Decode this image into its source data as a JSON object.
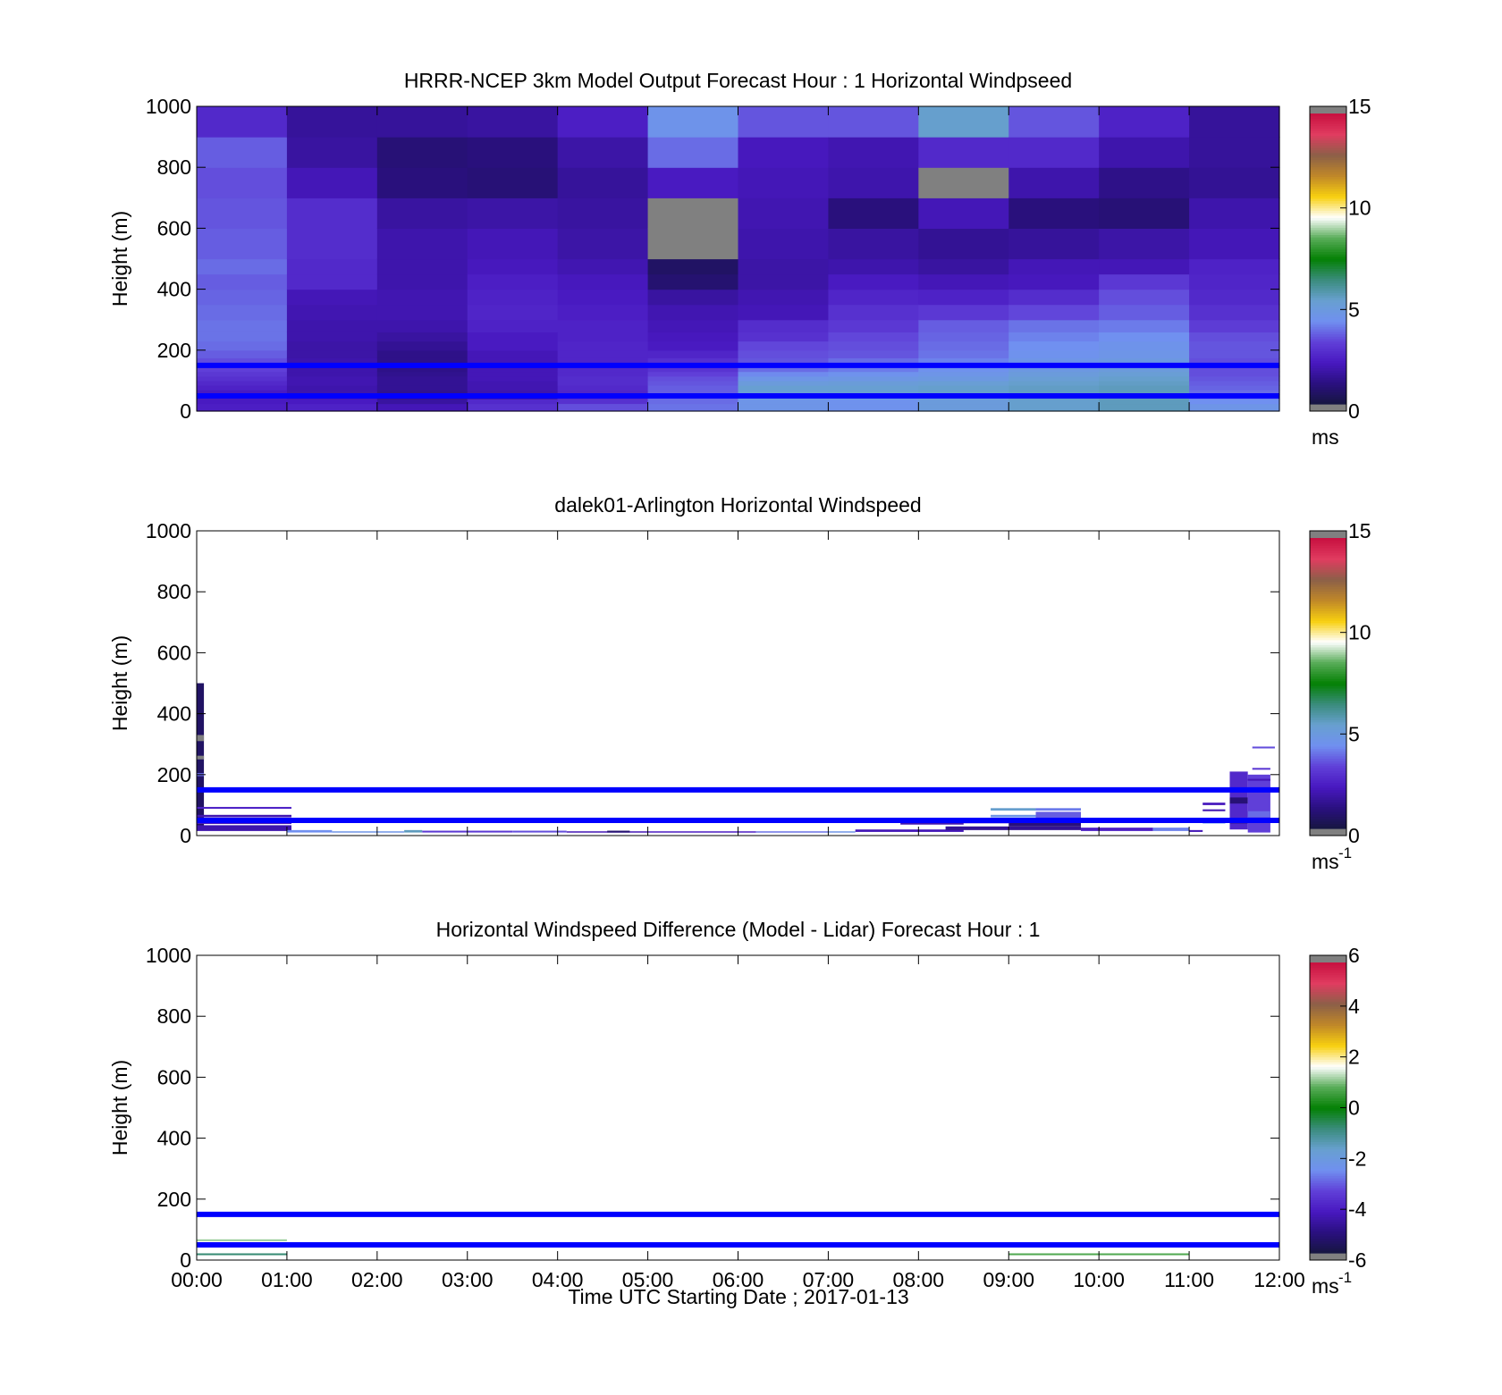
{
  "figure": {
    "xlabel": "Time UTC  Starting Date ; 2017-01-13",
    "x_ticks": [
      "00:00",
      "01:00",
      "02:00",
      "03:00",
      "04:00",
      "05:00",
      "06:00",
      "07:00",
      "08:00",
      "09:00",
      "10:00",
      "11:00",
      "12:00"
    ]
  },
  "palette": {
    "stops": [
      "#161640",
      "#2a1080",
      "#4818c0",
      "#6040d8",
      "#7090f0",
      "#68a0d0",
      "#3a8c7c",
      "#048004",
      "#58ac58",
      "#ffffff",
      "#f8d010",
      "#c08828",
      "#8c6048",
      "#e03c60",
      "#c81040"
    ],
    "overflow_color": "#808080",
    "guide_line_color": "#0000ff"
  },
  "chart_data": [
    {
      "type": "heatmap",
      "title": "HRRR-NCEP 3km Model Output   Forecast Hour : 1 Horizontal Windpseed",
      "ylabel": "Height (m)",
      "xlim": [
        0,
        12
      ],
      "ylim": [
        0,
        1000
      ],
      "y_ticks": [
        0,
        200,
        400,
        600,
        800,
        1000
      ],
      "colorbar": {
        "label": "ms",
        "label_sup": "",
        "range": [
          0,
          15
        ],
        "ticks": [
          0,
          5,
          10,
          15
        ]
      },
      "guide_lines_m": [
        150,
        50
      ],
      "columns_x": [
        0,
        1,
        2,
        3,
        4,
        5,
        6,
        7,
        8,
        9,
        10,
        11
      ],
      "level_edges_m": [
        0,
        25,
        40,
        55,
        70,
        85,
        100,
        115,
        130,
        150,
        175,
        200,
        230,
        260,
        300,
        350,
        400,
        450,
        500,
        600,
        700,
        800,
        900,
        1000
      ],
      "values": [
        [
          2.3,
          2.2,
          2.2,
          2.2,
          2.4,
          2.6,
          2.8,
          3.0,
          3.2,
          3.4,
          3.6,
          3.8,
          3.9,
          3.9,
          3.8,
          3.7,
          3.6,
          3.8,
          3.6,
          3.5,
          3.4,
          3.6,
          2.6
        ],
        [
          2.4,
          2.2,
          2.0,
          1.8,
          1.8,
          1.9,
          1.9,
          1.8,
          1.8,
          1.8,
          1.7,
          1.7,
          1.8,
          1.8,
          1.9,
          2.0,
          2.6,
          2.6,
          2.7,
          2.7,
          2.0,
          1.6,
          1.5
        ],
        [
          2.0,
          1.6,
          1.4,
          1.3,
          1.4,
          1.4,
          1.4,
          1.3,
          1.2,
          1.2,
          1.2,
          1.4,
          1.6,
          1.8,
          1.9,
          1.9,
          1.8,
          1.8,
          1.8,
          1.6,
          1.0,
          0.9,
          1.5
        ],
        [
          2.8,
          2.6,
          1.8,
          1.8,
          1.9,
          1.9,
          2.0,
          2.0,
          2.0,
          2.0,
          2.0,
          2.2,
          2.2,
          2.4,
          2.5,
          2.4,
          2.3,
          2.1,
          2.0,
          1.7,
          0.9,
          1.0,
          1.6
        ],
        [
          3.4,
          2.8,
          2.6,
          2.5,
          2.6,
          2.7,
          2.7,
          2.6,
          2.6,
          2.5,
          2.5,
          2.5,
          2.4,
          2.4,
          2.3,
          2.2,
          2.1,
          1.9,
          1.7,
          1.6,
          1.5,
          1.7,
          2.3
        ],
        [
          3.9,
          3.8,
          3.7,
          3.6,
          3.6,
          3.5,
          3.4,
          3.2,
          2.9,
          2.8,
          2.5,
          2.2,
          2.1,
          2.0,
          1.9,
          1.6,
          0.8,
          0.6,
          16,
          16,
          2.2,
          3.8,
          4.5
        ],
        [
          4.6,
          4.6,
          5.0,
          5.2,
          5.3,
          5.0,
          4.6,
          4.2,
          3.8,
          3.5,
          3.4,
          3.3,
          2.8,
          2.7,
          2.0,
          1.9,
          1.7,
          1.7,
          1.8,
          1.9,
          2.0,
          2.1,
          3.5
        ],
        [
          4.4,
          4.4,
          5.0,
          5.3,
          5.3,
          5.1,
          4.7,
          4.4,
          4.0,
          3.8,
          3.5,
          3.4,
          3.3,
          3.0,
          2.8,
          2.5,
          2.2,
          1.8,
          1.6,
          1.0,
          1.8,
          1.9,
          3.5
        ],
        [
          5.0,
          5.0,
          5.2,
          5.4,
          5.4,
          5.2,
          4.8,
          4.6,
          4.4,
          4.1,
          3.9,
          3.8,
          3.7,
          3.6,
          3.0,
          2.4,
          2.0,
          1.6,
          1.4,
          2.0,
          16,
          2.6,
          5.4
        ],
        [
          5.4,
          5.4,
          5.5,
          5.5,
          5.5,
          5.4,
          5.2,
          5.0,
          4.8,
          4.6,
          4.4,
          4.3,
          4.1,
          3.9,
          3.3,
          2.7,
          2.1,
          2.0,
          1.5,
          1.0,
          1.8,
          2.6,
          3.5
        ],
        [
          5.6,
          5.6,
          5.6,
          5.6,
          5.6,
          5.5,
          5.4,
          5.2,
          5.0,
          4.8,
          4.6,
          4.5,
          4.3,
          4.0,
          3.6,
          3.4,
          3.0,
          2.0,
          1.7,
          0.9,
          1.2,
          1.8,
          2.4
        ],
        [
          4.6,
          4.3,
          4.0,
          3.8,
          3.7,
          3.6,
          3.5,
          3.4,
          3.4,
          3.4,
          3.5,
          3.5,
          3.4,
          3.1,
          2.8,
          2.6,
          2.5,
          2.4,
          2.0,
          1.8,
          1.4,
          1.5,
          1.5
        ]
      ]
    },
    {
      "type": "heatmap",
      "title": "dalek01-Arlington  Horizontal Windspeed",
      "ylabel": "Height (m)",
      "xlim": [
        0,
        12
      ],
      "ylim": [
        0,
        1000
      ],
      "y_ticks": [
        0,
        200,
        400,
        600,
        800,
        1000
      ],
      "colorbar": {
        "label": "ms",
        "label_sup": "-1",
        "range": [
          0,
          15
        ],
        "ticks": [
          0,
          5,
          10,
          15
        ]
      },
      "guide_lines_m": [
        150,
        50
      ],
      "segments": [
        {
          "x0": 0.0,
          "x1": 0.08,
          "y0": 20,
          "y1": 500,
          "v": 0.6
        },
        {
          "x0": 0.0,
          "x1": 0.08,
          "y0": 310,
          "y1": 330,
          "v": 16
        },
        {
          "x0": 0.0,
          "x1": 0.08,
          "y0": 250,
          "y1": 262,
          "v": 16
        },
        {
          "x0": 0.0,
          "x1": 0.08,
          "y0": 195,
          "y1": 205,
          "v": 3.8
        },
        {
          "x0": 0.0,
          "x1": 1.05,
          "y0": 88,
          "y1": 94,
          "v": 2.4
        },
        {
          "x0": 0.0,
          "x1": 1.05,
          "y0": 60,
          "y1": 68,
          "v": 1.9
        },
        {
          "x0": 0.0,
          "x1": 1.05,
          "y0": 38,
          "y1": 46,
          "v": 2.1
        },
        {
          "x0": 0.0,
          "x1": 1.05,
          "y0": 15,
          "y1": 34,
          "v": 1.8
        },
        {
          "x0": 1.0,
          "x1": 1.5,
          "y0": 10,
          "y1": 18,
          "v": 4.3
        },
        {
          "x0": 1.5,
          "x1": 2.3,
          "y0": 10,
          "y1": 14,
          "v": 4.6
        },
        {
          "x0": 2.3,
          "x1": 2.5,
          "y0": 10,
          "y1": 18,
          "v": 5.6
        },
        {
          "x0": 2.5,
          "x1": 3.5,
          "y0": 10,
          "y1": 16,
          "v": 3.0
        },
        {
          "x0": 3.5,
          "x1": 4.1,
          "y0": 10,
          "y1": 16,
          "v": 3.4
        },
        {
          "x0": 4.1,
          "x1": 5.0,
          "y0": 10,
          "y1": 14,
          "v": 2.0
        },
        {
          "x0": 4.55,
          "x1": 4.8,
          "y0": 10,
          "y1": 16,
          "v": 0.8
        },
        {
          "x0": 5.0,
          "x1": 6.2,
          "y0": 10,
          "y1": 14,
          "v": 2.3
        },
        {
          "x0": 6.2,
          "x1": 7.0,
          "y0": 10,
          "y1": 14,
          "v": 3.9
        },
        {
          "x0": 7.0,
          "x1": 7.3,
          "y0": 10,
          "y1": 14,
          "v": 4.6
        },
        {
          "x0": 7.3,
          "x1": 8.5,
          "y0": 12,
          "y1": 20,
          "v": 2.0
        },
        {
          "x0": 7.8,
          "x1": 8.5,
          "y0": 36,
          "y1": 42,
          "v": 1.9
        },
        {
          "x0": 8.5,
          "x1": 9.0,
          "y0": 40,
          "y1": 50,
          "v": 3.0
        },
        {
          "x0": 8.8,
          "x1": 9.3,
          "y0": 82,
          "y1": 90,
          "v": 5.4
        },
        {
          "x0": 8.8,
          "x1": 9.3,
          "y0": 60,
          "y1": 68,
          "v": 4.6
        },
        {
          "x0": 9.3,
          "x1": 9.8,
          "y0": 82,
          "y1": 90,
          "v": 4.0
        },
        {
          "x0": 9.3,
          "x1": 9.8,
          "y0": 58,
          "y1": 78,
          "v": 3.6
        },
        {
          "x0": 8.3,
          "x1": 9.8,
          "y0": 18,
          "y1": 30,
          "v": 1.4
        },
        {
          "x0": 9.0,
          "x1": 9.8,
          "y0": 30,
          "y1": 42,
          "v": 1.0
        },
        {
          "x0": 9.8,
          "x1": 10.6,
          "y0": 15,
          "y1": 26,
          "v": 2.3
        },
        {
          "x0": 10.6,
          "x1": 11.0,
          "y0": 15,
          "y1": 26,
          "v": 4.1
        },
        {
          "x0": 11.0,
          "x1": 11.15,
          "y0": 12,
          "y1": 18,
          "v": 2.0
        },
        {
          "x0": 11.15,
          "x1": 11.4,
          "y0": 100,
          "y1": 108,
          "v": 2.1
        },
        {
          "x0": 11.15,
          "x1": 11.4,
          "y0": 80,
          "y1": 86,
          "v": 1.9
        },
        {
          "x0": 11.15,
          "x1": 11.4,
          "y0": 40,
          "y1": 44,
          "v": 4.6
        },
        {
          "x0": 11.45,
          "x1": 11.65,
          "y0": 20,
          "y1": 210,
          "v": 2.6
        },
        {
          "x0": 11.45,
          "x1": 11.65,
          "y0": 105,
          "y1": 125,
          "v": 0.9
        },
        {
          "x0": 11.45,
          "x1": 11.65,
          "y0": 40,
          "y1": 55,
          "v": 0.9
        },
        {
          "x0": 11.65,
          "x1": 11.9,
          "y0": 10,
          "y1": 200,
          "v": 3.2
        },
        {
          "x0": 11.65,
          "x1": 11.9,
          "y0": 180,
          "y1": 186,
          "v": 2.0
        },
        {
          "x0": 11.65,
          "x1": 11.9,
          "y0": 60,
          "y1": 80,
          "v": 3.8
        },
        {
          "x0": 11.7,
          "x1": 11.9,
          "y0": 216,
          "y1": 222,
          "v": 3.0
        },
        {
          "x0": 11.7,
          "x1": 11.95,
          "y0": 286,
          "y1": 292,
          "v": 3.4
        }
      ]
    },
    {
      "type": "heatmap",
      "title": "Horizontal Windspeed Difference (Model - Lidar) Forecast Hour : 1",
      "ylabel": "Height (m)",
      "xlim": [
        0,
        12
      ],
      "ylim": [
        0,
        1000
      ],
      "y_ticks": [
        0,
        200,
        400,
        600,
        800,
        1000
      ],
      "colorbar": {
        "label": "ms",
        "label_sup": "-1",
        "range": [
          -6,
          6
        ],
        "ticks": [
          -6,
          -4,
          -2,
          0,
          2,
          4,
          6
        ]
      },
      "guide_lines_m": [
        150,
        50
      ],
      "segments": [
        {
          "x0": 0.0,
          "x1": 1.0,
          "y0": 62,
          "y1": 68,
          "v": 1.2
        },
        {
          "x0": 0.0,
          "x1": 1.0,
          "y0": 16,
          "y1": 22,
          "v": -0.8
        },
        {
          "x0": 9.0,
          "x1": 11.0,
          "y0": 16,
          "y1": 22,
          "v": 0.8
        }
      ]
    }
  ]
}
